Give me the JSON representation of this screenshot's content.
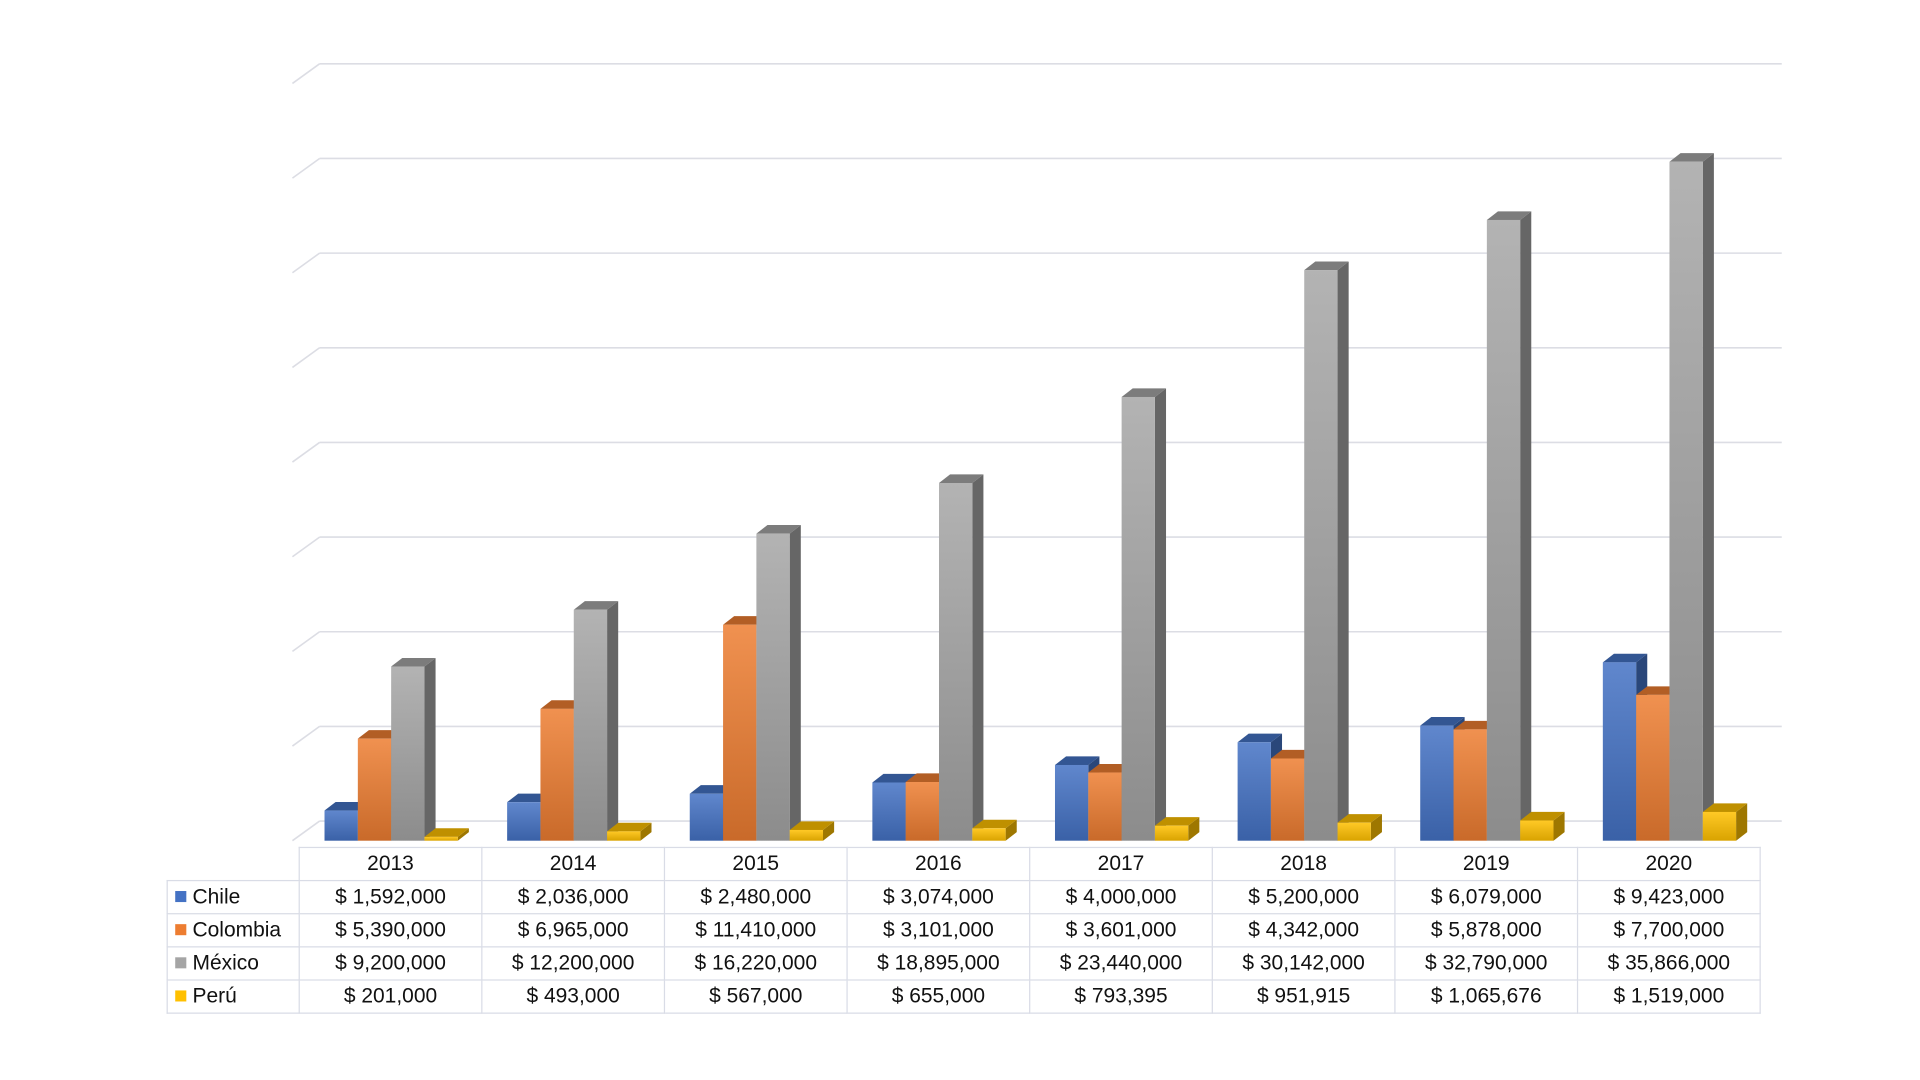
{
  "chart_data": {
    "type": "bar",
    "style": "3d-clustered-column-with-data-table",
    "title": "",
    "xlabel": "",
    "ylabel": "",
    "ylim": [
      0,
      40000000
    ],
    "y_gridline_step": 5000000,
    "y_tick_labels_shown": false,
    "grid": true,
    "legend": "data-table-left",
    "categories": [
      "2013",
      "2014",
      "2015",
      "2016",
      "2017",
      "2018",
      "2019",
      "2020"
    ],
    "currency_prefix": "$",
    "series": [
      {
        "name": "Chile",
        "color": "#4472c4",
        "values": [
          1592000,
          2036000,
          2480000,
          3074000,
          4000000,
          5200000,
          6079000,
          9423000
        ]
      },
      {
        "name": "Colombia",
        "color": "#ed7d31",
        "values": [
          5390000,
          6965000,
          11410000,
          3101000,
          3601000,
          4342000,
          5878000,
          7700000
        ]
      },
      {
        "name": "México",
        "color": "#a5a5a5",
        "values": [
          9200000,
          12200000,
          16220000,
          18895000,
          23440000,
          30142000,
          32790000,
          35866000
        ]
      },
      {
        "name": "Perú",
        "color": "#ffc000",
        "values": [
          201000,
          493000,
          567000,
          655000,
          793395,
          951915,
          1065676,
          1519000
        ]
      }
    ]
  }
}
